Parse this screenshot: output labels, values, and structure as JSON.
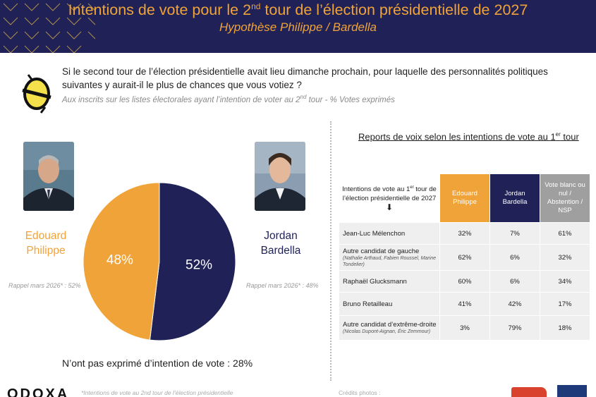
{
  "header": {
    "title_pre": "Intentions de vote pour le 2",
    "title_sup": "nd",
    "title_post": " tour de l’élection présidentielle de 2027",
    "subtitle": "Hypothèse Philippe / Bardella"
  },
  "question": {
    "text": "Si le second tour de l’élection présidentielle avait lieu dimanche prochain, pour laquelle des personnalités politiques suivantes y aurait-il le plus de chances que vous votiez ?",
    "note_pre": "Aux inscrits sur les listes électorales ayant l’intention de voter au 2",
    "note_sup": "nd",
    "note_post": " tour  - % Votes exprimés"
  },
  "candidates": {
    "philippe": {
      "line1": "Edouard",
      "line2": "Philippe",
      "rappel": "Rappel mars 2026* : 52%"
    },
    "bardella": {
      "line1": "Jordan",
      "line2": "Bardella",
      "rappel": "Rappel mars 2026* : 48%"
    }
  },
  "chart_data": [
    {
      "type": "pie",
      "title": "",
      "slices": [
        {
          "label": "Jordan Bardella",
          "value": 52,
          "display": "52%",
          "color": "#1f2157"
        },
        {
          "label": "Edouard Philippe",
          "value": 48,
          "display": "48%",
          "color": "#f0a338"
        }
      ],
      "legend": "none"
    },
    {
      "type": "table",
      "title_pre": "Reports de voix selon les intentions de vote au 1",
      "title_sup": "er",
      "title_post": " tour",
      "corner_pre": "Intentions de vote au 1",
      "corner_sup": "er",
      "corner_post": " tour de l’élection présidentielle de 2027",
      "columns": [
        "Edouard Philippe",
        "Jordan Bardella",
        "Vote blanc ou nul / Abstention / NSP"
      ],
      "rows": [
        {
          "label": "Jean-Luc Mélenchon",
          "sub": "",
          "values": [
            "32%",
            "7%",
            "61%"
          ]
        },
        {
          "label": "Autre candidat de gauche",
          "sub": "(Nathalie Arthaud, Fabien Roussel, Marine Tondelier)",
          "values": [
            "62%",
            "6%",
            "32%"
          ]
        },
        {
          "label": "Raphaël Glucksmann",
          "sub": "",
          "values": [
            "60%",
            "6%",
            "34%"
          ]
        },
        {
          "label": "Bruno Retailleau",
          "sub": "",
          "values": [
            "41%",
            "42%",
            "17%"
          ]
        },
        {
          "label": "Autre candidat d’extrême-droite",
          "sub": "(Nicolas Dupont-Aignan, Éric Zemmour)",
          "values": [
            "3%",
            "79%",
            "18%"
          ]
        }
      ]
    }
  ],
  "no_intent": "N’ont pas exprimé d’intention de vote : 28%",
  "footer": {
    "brand": "ODOXA",
    "note": "*Intentions de vote au 2nd tour de l’élection présidentielle",
    "credits": "Crédits photos :"
  },
  "colors": {
    "navy": "#1f2157",
    "orange": "#f0a338",
    "grey": "#9f9f9f"
  }
}
